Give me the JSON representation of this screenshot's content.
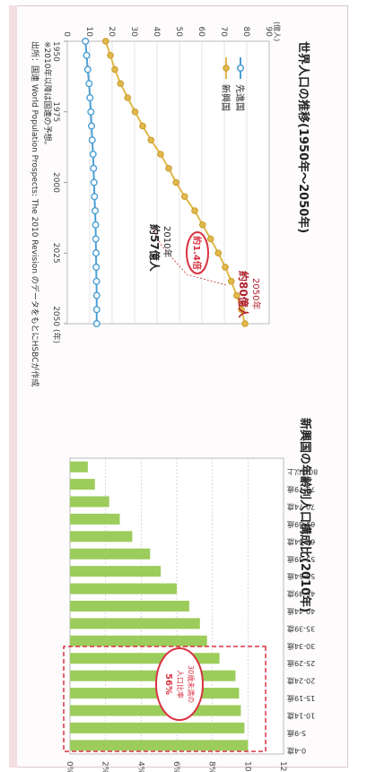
{
  "colors": {
    "developed": "#4b9fd4",
    "emerging": "#e0b94a",
    "bar": "#9ccc5b",
    "accent": "#d93342",
    "frame": "#d9c7c9"
  },
  "footnote": {
    "line1": "※2010年以降は国連の予想。",
    "line2": "出所：国連 World Population Prospects: The 2010 Revision のデータをもとにHSBCが作成"
  },
  "chart_data": [
    {
      "type": "line",
      "title": "世界人口の推移(1950年〜2050年)",
      "ylabel": "(億人)",
      "xlabel": "",
      "x_ticks": [
        "1950",
        "1975",
        "2000",
        "2025",
        "2050 (年)"
      ],
      "y_ticks": [
        "0",
        "10",
        "20",
        "30",
        "40",
        "50",
        "60",
        "70",
        "80",
        "90"
      ],
      "xlim": [
        1950,
        2050
      ],
      "ylim": [
        0,
        90
      ],
      "legend": [
        "先進国",
        "新興国"
      ],
      "legend_position": "top-left",
      "x": [
        1950,
        1955,
        1960,
        1965,
        1970,
        1975,
        1980,
        1985,
        1990,
        1995,
        2000,
        2005,
        2010,
        2015,
        2020,
        2025,
        2030,
        2035,
        2040,
        2045,
        2050
      ],
      "series": [
        {
          "name": "先進国",
          "values": [
            8.1,
            8.6,
            9.1,
            9.7,
            10.1,
            10.5,
            10.8,
            11.1,
            11.5,
            11.7,
            11.9,
            12.1,
            12.4,
            12.6,
            12.7,
            12.8,
            12.9,
            13.0,
            13.1,
            13.1,
            13.1
          ]
        },
        {
          "name": "新興国",
          "values": [
            17.1,
            19.2,
            21.2,
            23.7,
            26.9,
            30.2,
            33.6,
            37.3,
            41.6,
            45.2,
            48.5,
            52.3,
            56.8,
            60.3,
            63.9,
            67.3,
            70.4,
            73.1,
            75.5,
            77.6,
            79.2
          ]
        }
      ],
      "annotations": [
        {
          "text": "2050年",
          "text2": "約80億人"
        },
        {
          "text": "2010年",
          "text2": "約57億人"
        },
        {
          "text": "約1.4倍"
        }
      ]
    },
    {
      "type": "bar",
      "title": "新興国の年齢別人口構成比(2010年)",
      "orientation": "horizontal",
      "categories": [
        "0-4歳",
        "5-9歳",
        "10-14歳",
        "15-19歳",
        "20-24歳",
        "25-29歳",
        "30-34歳",
        "35-39歳",
        "40-44歳",
        "45-49歳",
        "50-54歳",
        "55-59歳",
        "60-64歳",
        "65-69歳",
        "70-74歳",
        "75-79歳",
        "80歳以上"
      ],
      "values": [
        10.0,
        9.8,
        9.6,
        9.5,
        9.3,
        8.4,
        7.7,
        7.3,
        6.7,
        6.0,
        5.1,
        4.5,
        3.5,
        2.8,
        2.2,
        1.4,
        1.0
      ],
      "x_ticks": [
        "0%",
        "2%",
        "4%",
        "6%",
        "8%",
        "10%",
        "12%"
      ],
      "xlim": [
        0,
        12
      ],
      "grid": true,
      "annotation": {
        "line1": "30歳未満の",
        "line2": "人口比率",
        "line3": "56%"
      }
    }
  ]
}
